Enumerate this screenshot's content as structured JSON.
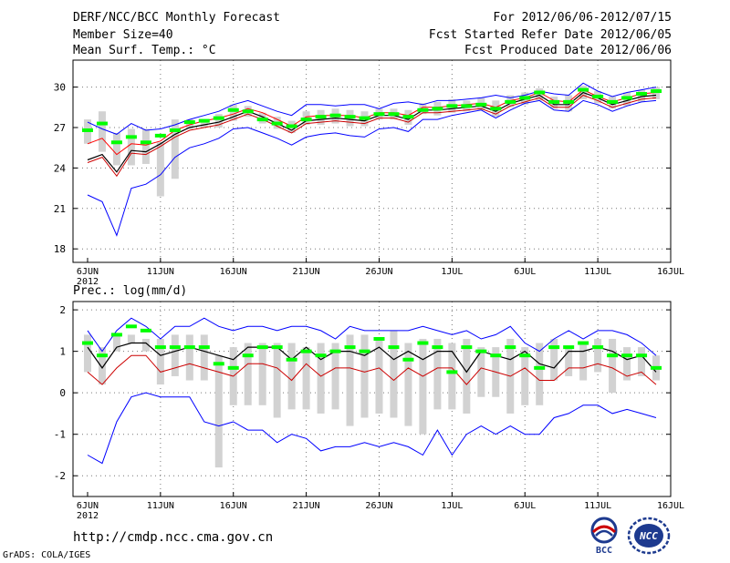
{
  "header": {
    "title": "DERF/NCC/BCC Monthly Forecast",
    "member_size": "Member Size=40",
    "variable": "Mean Surf. Temp.: °C",
    "period": "For 2012/06/06-2012/07/15",
    "fcst_started": "Fcst Started Refer Date 2012/06/05",
    "fcst_produced": "Fcst Produced Date 2012/06/06"
  },
  "footer": {
    "url": "http://cmdp.ncc.cma.gov.cn",
    "grads_credit": "GrADS: COLA/IGES",
    "logo_bcc_text": "BCC",
    "logo_ncc_text": "NCC"
  },
  "colors": {
    "max_min": "#0000ff",
    "mean": "#000000",
    "median": "#ff0000",
    "lower": "#cc0000",
    "obs": "#00ff00",
    "spread_bar": "#d2d2d2",
    "grid": "#777777"
  },
  "chart_data": [
    {
      "type": "line",
      "title": "Mean Surf. Temp.: °C",
      "x_tick_labels": [
        "6JUN",
        "11JUN",
        "16JUN",
        "21JUN",
        "26JUN",
        "1JUL",
        "6JUL",
        "11JUL",
        "16JUL"
      ],
      "x_year_label": "2012",
      "x_days": [
        1,
        2,
        3,
        4,
        5,
        6,
        7,
        8,
        9,
        10,
        11,
        12,
        13,
        14,
        15,
        16,
        17,
        18,
        19,
        20,
        21,
        22,
        23,
        24,
        25,
        26,
        27,
        28,
        29,
        30,
        31,
        32,
        33,
        34,
        35,
        36,
        37,
        38,
        39,
        40
      ],
      "xlim": [
        0,
        41
      ],
      "ylim": [
        17,
        32
      ],
      "y_ticks": [
        18,
        21,
        24,
        27,
        30
      ],
      "series": [
        {
          "name": "max",
          "values": [
            27.4,
            26.9,
            26.5,
            27.3,
            26.8,
            26.9,
            27.2,
            27.6,
            27.9,
            28.2,
            28.7,
            29.0,
            28.6,
            28.2,
            27.9,
            28.7,
            28.7,
            28.6,
            28.7,
            28.7,
            28.4,
            28.8,
            28.9,
            28.7,
            29.0,
            29.0,
            29.1,
            29.2,
            29.4,
            29.2,
            29.4,
            29.7,
            29.5,
            29.4,
            30.3,
            29.7,
            29.3,
            29.6,
            29.8,
            30.0
          ]
        },
        {
          "name": "upper",
          "values": [
            25.8,
            26.2,
            25.0,
            25.8,
            25.7,
            26.0,
            26.8,
            27.2,
            27.5,
            27.7,
            28.0,
            28.4,
            28.1,
            27.6,
            27.1,
            27.8,
            27.9,
            27.9,
            27.9,
            27.7,
            28.1,
            28.1,
            27.9,
            28.5,
            28.5,
            28.6,
            28.7,
            28.8,
            28.5,
            29.0,
            29.2,
            29.6,
            29.0,
            28.9,
            29.8,
            29.3,
            28.9,
            29.2,
            29.5,
            29.6
          ]
        },
        {
          "name": "mean",
          "values": [
            24.6,
            25.0,
            23.7,
            25.3,
            25.2,
            25.8,
            26.5,
            27.0,
            27.2,
            27.4,
            27.8,
            28.2,
            27.8,
            27.3,
            26.8,
            27.5,
            27.6,
            27.7,
            27.6,
            27.5,
            27.9,
            27.9,
            27.6,
            28.3,
            28.3,
            28.4,
            28.5,
            28.6,
            28.2,
            28.8,
            29.1,
            29.4,
            28.7,
            28.7,
            29.6,
            29.2,
            28.7,
            29.0,
            29.3,
            29.4
          ]
        },
        {
          "name": "median",
          "values": [
            24.4,
            24.8,
            23.4,
            25.1,
            25.0,
            25.6,
            26.3,
            26.8,
            27.0,
            27.2,
            27.6,
            28.0,
            27.6,
            27.1,
            26.6,
            27.3,
            27.4,
            27.5,
            27.4,
            27.3,
            27.7,
            27.7,
            27.4,
            28.1,
            28.1,
            28.2,
            28.3,
            28.4,
            28.0,
            28.6,
            28.9,
            29.2,
            28.5,
            28.5,
            29.4,
            29.0,
            28.5,
            28.8,
            29.1,
            29.2
          ]
        },
        {
          "name": "min",
          "values": [
            22.0,
            21.5,
            19.0,
            22.5,
            22.8,
            23.5,
            24.8,
            25.5,
            25.8,
            26.2,
            26.9,
            27.0,
            26.6,
            26.2,
            25.7,
            26.3,
            26.5,
            26.6,
            26.4,
            26.3,
            26.9,
            27.0,
            26.7,
            27.6,
            27.6,
            27.9,
            28.1,
            28.3,
            27.7,
            28.3,
            28.8,
            29.0,
            28.3,
            28.2,
            29.0,
            28.7,
            28.2,
            28.6,
            28.9,
            29.0
          ]
        },
        {
          "name": "obs",
          "values": [
            26.8,
            27.3,
            25.9,
            26.3,
            25.9,
            26.4,
            26.8,
            27.4,
            27.5,
            27.7,
            28.3,
            28.2,
            27.6,
            27.3,
            27.1,
            27.6,
            27.8,
            27.9,
            27.8,
            27.7,
            28.0,
            28.0,
            27.8,
            28.3,
            28.4,
            28.6,
            28.6,
            28.7,
            28.4,
            28.9,
            29.2,
            29.6,
            28.9,
            28.9,
            29.8,
            29.3,
            28.9,
            29.2,
            29.5,
            29.7
          ]
        },
        {
          "name": "spread_low",
          "values": [
            25.8,
            25.2,
            24.2,
            24.2,
            24.3,
            21.9,
            23.2,
            26.9,
            27.0,
            27.0,
            27.5,
            27.8,
            27.3,
            26.9,
            26.6,
            27.2,
            27.2,
            27.3,
            27.1,
            27.1,
            27.6,
            27.6,
            27.2,
            28.0,
            27.9,
            28.1,
            28.2,
            28.3,
            27.8,
            28.5,
            28.7,
            29.0,
            28.4,
            28.2,
            29.1,
            28.8,
            28.4,
            28.6,
            28.9,
            29.1
          ]
        },
        {
          "name": "spread_high",
          "values": [
            27.6,
            28.2,
            26.6,
            26.9,
            26.9,
            25.9,
            27.6,
            27.6,
            27.6,
            28.0,
            28.7,
            28.6,
            28.1,
            27.8,
            27.5,
            28.2,
            28.3,
            28.4,
            28.3,
            28.2,
            28.4,
            28.4,
            28.3,
            28.8,
            28.9,
            29.1,
            29.0,
            29.2,
            29.0,
            29.4,
            29.6,
            29.9,
            29.3,
            29.4,
            30.1,
            29.7,
            29.3,
            29.6,
            29.8,
            30.0
          ]
        }
      ]
    },
    {
      "type": "line",
      "title": "Prec.: log(mm/d)",
      "x_tick_labels": [
        "6JUN",
        "11JUN",
        "16JUN",
        "21JUN",
        "26JUN",
        "1JUL",
        "6JUL",
        "11JUL",
        "16JUL"
      ],
      "x_year_label": "2012",
      "x_days": [
        1,
        2,
        3,
        4,
        5,
        6,
        7,
        8,
        9,
        10,
        11,
        12,
        13,
        14,
        15,
        16,
        17,
        18,
        19,
        20,
        21,
        22,
        23,
        24,
        25,
        26,
        27,
        28,
        29,
        30,
        31,
        32,
        33,
        34,
        35,
        36,
        37,
        38,
        39,
        40
      ],
      "xlim": [
        0,
        41
      ],
      "ylim": [
        -2.5,
        2.2
      ],
      "y_ticks": [
        -2,
        -1,
        0,
        1,
        2
      ],
      "series": [
        {
          "name": "max",
          "values": [
            1.5,
            1.0,
            1.5,
            1.8,
            1.6,
            1.3,
            1.6,
            1.6,
            1.8,
            1.6,
            1.5,
            1.6,
            1.6,
            1.5,
            1.6,
            1.6,
            1.5,
            1.3,
            1.6,
            1.5,
            1.5,
            1.5,
            1.5,
            1.6,
            1.5,
            1.4,
            1.5,
            1.3,
            1.4,
            1.6,
            1.2,
            1.0,
            1.3,
            1.5,
            1.3,
            1.5,
            1.5,
            1.4,
            1.2,
            0.9
          ]
        },
        {
          "name": "mean",
          "values": [
            1.1,
            0.6,
            1.1,
            1.2,
            1.2,
            0.9,
            1.0,
            1.1,
            1.0,
            0.9,
            0.8,
            1.1,
            1.1,
            1.1,
            0.8,
            1.1,
            0.8,
            1.0,
            1.0,
            0.9,
            1.1,
            0.8,
            1.0,
            0.8,
            1.0,
            1.0,
            0.5,
            1.0,
            0.9,
            0.8,
            1.0,
            0.7,
            0.6,
            1.0,
            1.0,
            1.1,
            1.0,
            0.8,
            0.9,
            0.5
          ]
        },
        {
          "name": "median",
          "values": [
            0.5,
            0.2,
            0.6,
            0.9,
            0.9,
            0.5,
            0.6,
            0.7,
            0.6,
            0.5,
            0.4,
            0.7,
            0.7,
            0.6,
            0.3,
            0.7,
            0.4,
            0.6,
            0.6,
            0.5,
            0.6,
            0.3,
            0.6,
            0.4,
            0.6,
            0.6,
            0.2,
            0.6,
            0.5,
            0.4,
            0.6,
            0.3,
            0.3,
            0.6,
            0.6,
            0.7,
            0.6,
            0.4,
            0.5,
            0.2
          ]
        },
        {
          "name": "min",
          "values": [
            -1.5,
            -1.7,
            -0.7,
            -0.1,
            0.0,
            -0.1,
            -0.1,
            -0.1,
            -0.7,
            -0.8,
            -0.7,
            -0.9,
            -0.9,
            -1.2,
            -1.0,
            -1.1,
            -1.4,
            -1.3,
            -1.3,
            -1.2,
            -1.3,
            -1.2,
            -1.3,
            -1.5,
            -0.9,
            -1.5,
            -1.0,
            -0.8,
            -1.0,
            -0.8,
            -1.0,
            -1.0,
            -0.6,
            -0.5,
            -0.3,
            -0.3,
            -0.5,
            -0.4,
            -0.5,
            -0.6
          ]
        },
        {
          "name": "obs",
          "values": [
            1.2,
            0.9,
            1.4,
            1.6,
            1.5,
            1.1,
            1.1,
            1.1,
            1.1,
            0.7,
            0.6,
            0.9,
            1.1,
            1.1,
            0.8,
            1.0,
            0.9,
            1.0,
            1.1,
            1.0,
            1.3,
            1.1,
            0.8,
            1.2,
            1.1,
            0.5,
            1.1,
            1.0,
            0.9,
            1.1,
            0.9,
            0.6,
            1.1,
            1.1,
            1.2,
            1.1,
            0.9,
            0.9,
            0.9,
            0.6
          ]
        },
        {
          "name": "spread_low",
          "values": [
            0.5,
            0.2,
            1.0,
            1.2,
            1.0,
            0.2,
            0.4,
            0.3,
            0.3,
            -1.8,
            -0.3,
            -0.3,
            -0.3,
            -0.6,
            -0.4,
            -0.4,
            -0.5,
            -0.4,
            -0.8,
            -0.6,
            -0.5,
            -0.6,
            -0.8,
            -1.0,
            -0.4,
            -0.4,
            -0.5,
            -0.1,
            -0.1,
            -0.5,
            -0.3,
            -0.3,
            0.3,
            0.4,
            0.3,
            0.5,
            0.0,
            0.3,
            0.4,
            0.3
          ]
        },
        {
          "name": "spread_high",
          "values": [
            1.4,
            1.1,
            1.4,
            1.4,
            1.3,
            1.3,
            1.4,
            1.4,
            1.4,
            0.9,
            1.1,
            1.2,
            1.2,
            1.2,
            1.2,
            1.1,
            1.2,
            1.2,
            1.4,
            1.4,
            1.3,
            1.5,
            1.2,
            1.3,
            1.3,
            1.2,
            1.3,
            1.1,
            1.1,
            1.3,
            1.1,
            1.2,
            1.3,
            1.1,
            1.2,
            1.3,
            1.3,
            1.1,
            1.1,
            0.9
          ]
        }
      ]
    }
  ]
}
